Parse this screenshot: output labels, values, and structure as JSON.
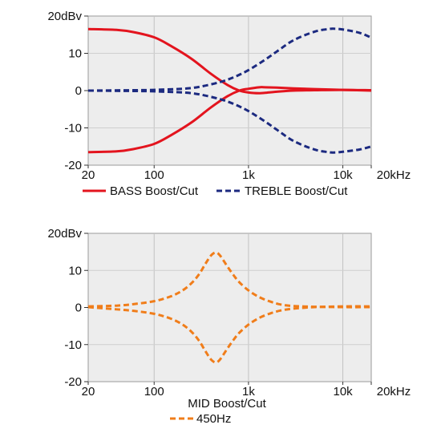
{
  "chart_data": [
    {
      "type": "line",
      "x_scale": "log",
      "xlim": [
        20,
        20000
      ],
      "ylim": [
        -20,
        20
      ],
      "x_ticks": [
        {
          "value": 20,
          "label": "20"
        },
        {
          "value": 100,
          "label": "100"
        },
        {
          "value": 1000,
          "label": "1k"
        },
        {
          "value": 10000,
          "label": "10k"
        },
        {
          "value": 20000,
          "label": "20kHz"
        }
      ],
      "y_ticks": [
        {
          "value": 20,
          "label": "20dBv"
        },
        {
          "value": 10,
          "label": "10"
        },
        {
          "value": 0,
          "label": "0"
        },
        {
          "value": -10,
          "label": "-10"
        },
        {
          "value": -20,
          "label": "-20"
        }
      ],
      "grid": true,
      "legend_position": "bottom",
      "series": [
        {
          "name": "BASS Boost/Cut",
          "color": "#e3141e",
          "style": "solid",
          "curves": [
            {
              "x": [
                20,
                40,
                60,
                100,
                150,
                250,
                400,
                600,
                800,
                1000,
                1300,
                1500,
                2000,
                3000,
                5000,
                10000,
                20000
              ],
              "y": [
                16.5,
                16.3,
                15.7,
                14.3,
                12.0,
                8.5,
                4.5,
                1.5,
                0.0,
                -0.5,
                -0.7,
                -0.6,
                -0.3,
                0.0,
                0.1,
                0.2,
                0.1
              ]
            },
            {
              "x": [
                20,
                40,
                60,
                100,
                150,
                250,
                400,
                600,
                800,
                1000,
                1300,
                1500,
                2000,
                3000,
                5000,
                10000,
                20000
              ],
              "y": [
                -16.5,
                -16.3,
                -15.7,
                -14.3,
                -12.0,
                -8.5,
                -4.5,
                -1.5,
                0.0,
                0.5,
                0.9,
                0.9,
                0.8,
                0.6,
                0.4,
                0.2,
                0.0
              ]
            }
          ]
        },
        {
          "name": "TREBLE Boost/Cut",
          "color": "#1c2a80",
          "style": "dashed",
          "curves": [
            {
              "x": [
                20,
                60,
                100,
                200,
                300,
                500,
                700,
                1000,
                1500,
                2000,
                3000,
                5000,
                7000,
                8000,
                10000,
                15000,
                20000
              ],
              "y": [
                0,
                0.1,
                0.2,
                0.5,
                1.0,
                2.3,
                3.6,
                5.5,
                8.3,
                10.5,
                13.5,
                15.8,
                16.5,
                16.6,
                16.4,
                15.5,
                14.2
              ]
            },
            {
              "x": [
                20,
                60,
                100,
                200,
                300,
                500,
                700,
                1000,
                1500,
                2000,
                3000,
                5000,
                7000,
                8000,
                10000,
                15000,
                20000
              ],
              "y": [
                0,
                -0.1,
                -0.2,
                -0.5,
                -1.0,
                -2.3,
                -3.6,
                -5.5,
                -8.3,
                -10.5,
                -13.5,
                -15.8,
                -16.5,
                -16.6,
                -16.4,
                -15.8,
                -15.0
              ]
            }
          ]
        }
      ]
    },
    {
      "type": "line",
      "x_scale": "log",
      "xlim": [
        20,
        20000
      ],
      "ylim": [
        -20,
        20
      ],
      "x_ticks": [
        {
          "value": 20,
          "label": "20"
        },
        {
          "value": 100,
          "label": "100"
        },
        {
          "value": 1000,
          "label": "1k"
        },
        {
          "value": 10000,
          "label": "10k"
        },
        {
          "value": 20000,
          "label": "20kHz"
        }
      ],
      "y_ticks": [
        {
          "value": 20,
          "label": "20dBv"
        },
        {
          "value": 10,
          "label": "10"
        },
        {
          "value": 0,
          "label": "0"
        },
        {
          "value": -10,
          "label": "-10"
        },
        {
          "value": -20,
          "label": "-20"
        }
      ],
      "grid": true,
      "legend_title": "MID Boost/Cut",
      "legend_position": "bottom",
      "series": [
        {
          "name": "450Hz",
          "color": "#f07d1a",
          "style": "dashed",
          "curves": [
            {
              "x": [
                20,
                40,
                60,
                100,
                150,
                200,
                250,
                300,
                350,
                400,
                450,
                500,
                600,
                700,
                800,
                1000,
                1300,
                1700,
                2200,
                3000,
                5000,
                10000,
                20000
              ],
              "y": [
                0.3,
                0.5,
                0.9,
                1.7,
                3.0,
                4.6,
                6.6,
                9.0,
                11.8,
                14.0,
                14.8,
                14.0,
                11.0,
                8.6,
                6.8,
                4.6,
                2.8,
                1.6,
                0.8,
                0.4,
                0.2,
                0.1,
                0.1
              ]
            },
            {
              "x": [
                20,
                40,
                60,
                100,
                150,
                200,
                250,
                300,
                350,
                400,
                450,
                500,
                600,
                700,
                800,
                1000,
                1300,
                1700,
                2200,
                3000,
                5000,
                10000,
                20000
              ],
              "y": [
                0.1,
                -0.5,
                -0.9,
                -1.7,
                -3.0,
                -4.6,
                -6.6,
                -9.0,
                -11.8,
                -14.0,
                -14.8,
                -14.0,
                -11.0,
                -8.6,
                -6.8,
                -4.6,
                -2.8,
                -1.6,
                -0.8,
                -0.3,
                0.1,
                0.3,
                0.3
              ]
            }
          ]
        }
      ]
    }
  ]
}
